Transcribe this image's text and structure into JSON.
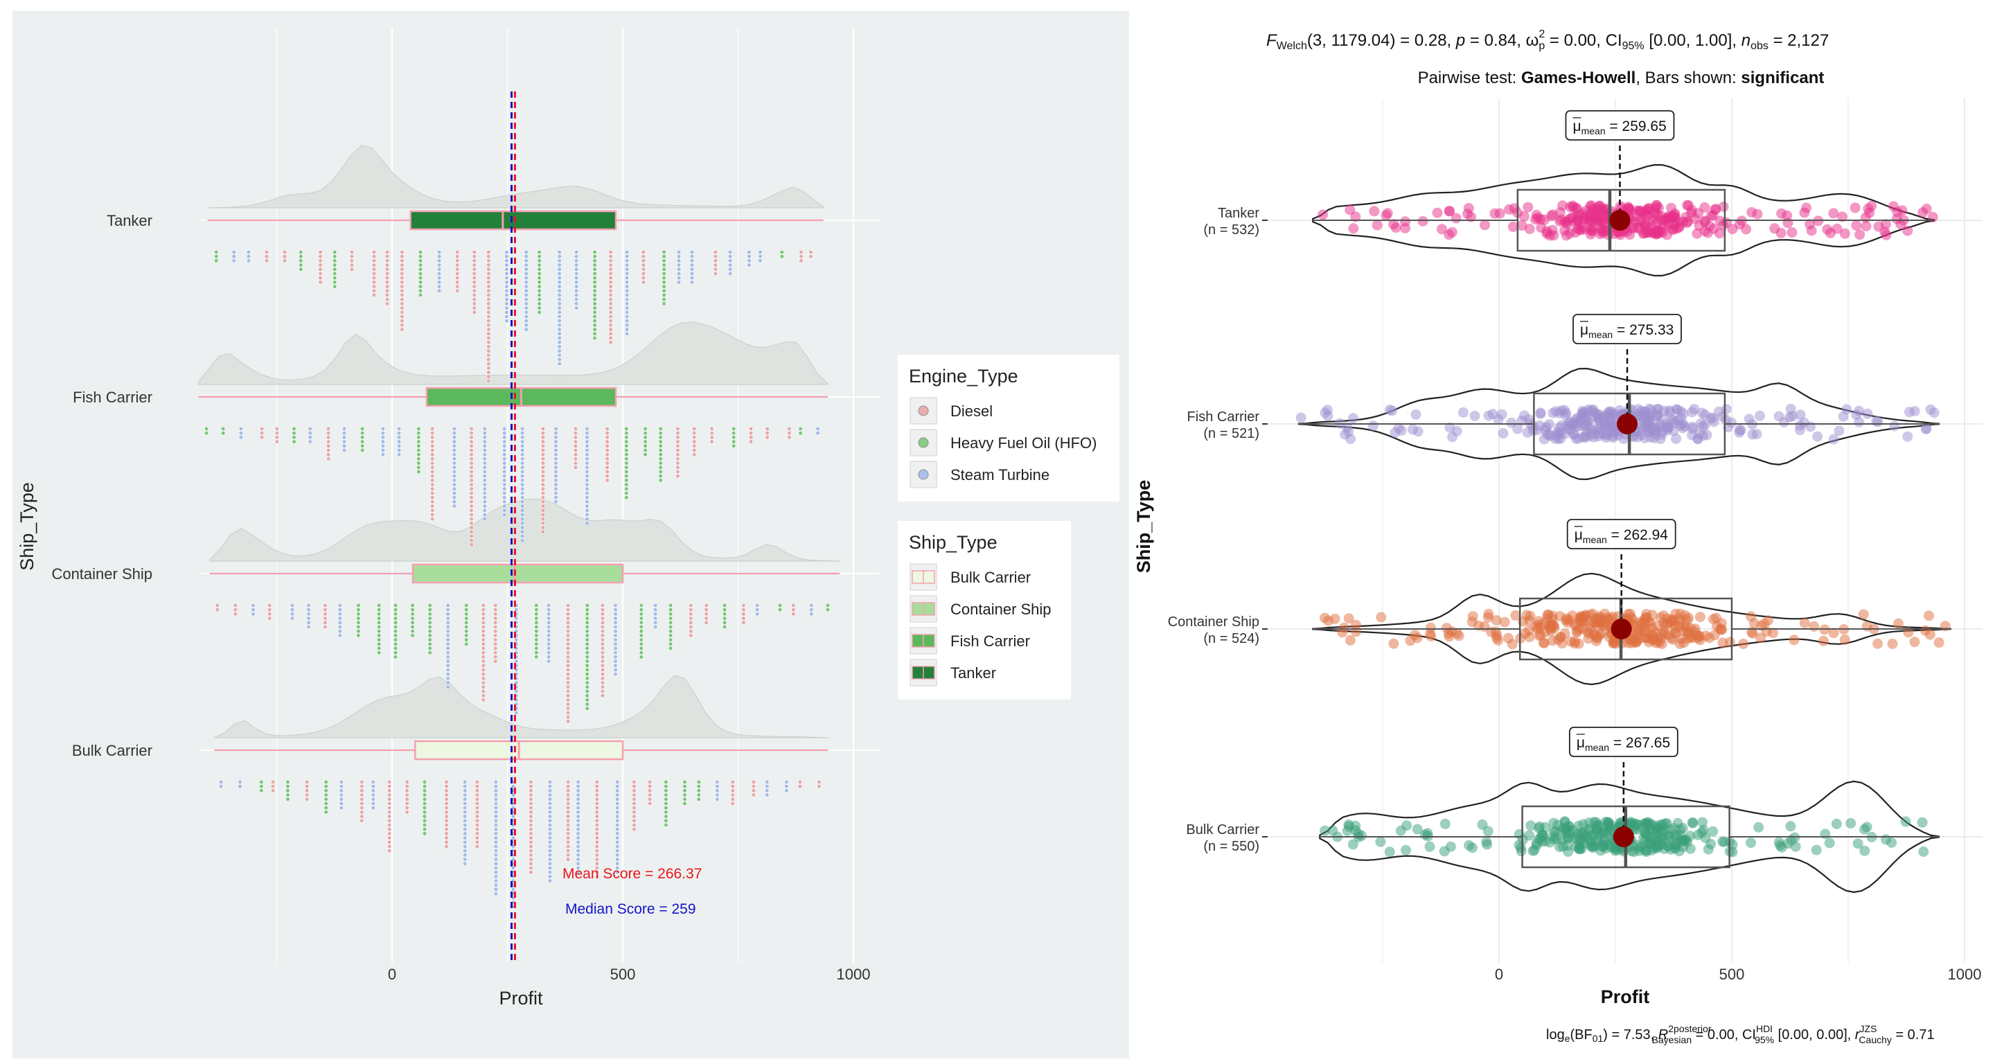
{
  "chart_data": [
    {
      "type": "raincloud",
      "xlabel": "Profit",
      "ylabel": "Ship_Type",
      "xlim": [
        -420,
        1050
      ],
      "x_ticks": [
        0,
        500,
        1000
      ],
      "categories": [
        "Bulk Carrier",
        "Container Ship",
        "Fish Carrier",
        "Tanker"
      ],
      "boxes": [
        {
          "name": "Bulk Carrier",
          "q1": 50,
          "median": 275,
          "q3": 500,
          "min": -385,
          "max": 945,
          "fill": "#edf7e2"
        },
        {
          "name": "Container Ship",
          "q1": 45,
          "median": 265,
          "q3": 500,
          "min": -395,
          "max": 970,
          "fill": "#a9dd9c"
        },
        {
          "name": "Fish Carrier",
          "q1": 75,
          "median": 280,
          "q3": 485,
          "min": -420,
          "max": 945,
          "fill": "#5cb85c"
        },
        {
          "name": "Tanker",
          "q1": 40,
          "median": 240,
          "q3": 485,
          "min": -400,
          "max": 935,
          "fill": "#23803a"
        }
      ],
      "mean_line": 266.37,
      "median_line": 259,
      "annotations": [
        "Mean Score =  266.37",
        "Median Score =  259"
      ],
      "legends": [
        {
          "title": "Engine_Type",
          "items": [
            {
              "label": "Diesel",
              "color": "#e8a0a0"
            },
            {
              "label": "Heavy Fuel Oil (HFO)",
              "color": "#6cc36c"
            },
            {
              "label": "Steam Turbine",
              "color": "#9bb6e8"
            }
          ]
        },
        {
          "title": "Ship_Type",
          "items": [
            {
              "label": "Bulk Carrier",
              "color": "#edf7e2"
            },
            {
              "label": "Container Ship",
              "color": "#a9dd9c"
            },
            {
              "label": "Fish Carrier",
              "color": "#5cb85c"
            },
            {
              "label": "Tanker",
              "color": "#23803a"
            }
          ]
        }
      ],
      "colors": {
        "panel_bg": "#edf0f0",
        "mean": "#e8161b",
        "median": "#1414c8",
        "box_outline": "#f4a0b0",
        "density": "#dde2df"
      }
    },
    {
      "type": "violin-box-scatter",
      "title_parts": {
        "welch_f": "F",
        "welch_sub": "Welch",
        "welch_args": "(3, 1179.04) = 0.28, ",
        "p": "p",
        "p_val": " = 0.84, ",
        "omega": "ω",
        "omega_sub": "p",
        "omega_sup": "2",
        "omega_hat": "^",
        "omega_val": " = 0.00, CI",
        "ci_sub": "95%",
        "ci_val": " [0.00, 1.00], ",
        "n": "n",
        "n_sub": "obs",
        "n_val": " = 2,127"
      },
      "subtitle": {
        "lead": "Pairwise test: ",
        "test": "Games-Howell",
        "mid": ", Bars shown: ",
        "shown": "significant"
      },
      "xlabel": "Profit",
      "ylabel": "Ship_Type",
      "xlim": [
        -440,
        1050
      ],
      "x_ticks": [
        0,
        500,
        1000
      ],
      "groups": [
        {
          "name": "Tanker",
          "n": "(n = 532)",
          "mean": 259.65,
          "mean_label": "259.65",
          "q1": 40,
          "median": 238,
          "q3": 485,
          "min": -400,
          "max": 935,
          "color": "#e8308a"
        },
        {
          "name": "Fish Carrier",
          "n": "(n = 521)",
          "mean": 275.33,
          "mean_label": "275.33",
          "q1": 75,
          "median": 280,
          "q3": 485,
          "min": -430,
          "max": 945,
          "color": "#9e8fd0"
        },
        {
          "name": "Container Ship",
          "n": "(n = 524)",
          "mean": 262.94,
          "mean_label": "262.94",
          "q1": 45,
          "median": 262,
          "q3": 500,
          "min": -400,
          "max": 970,
          "color": "#e07040"
        },
        {
          "name": "Bulk Carrier",
          "n": "(n = 550)",
          "mean": 267.65,
          "mean_label": "267.65",
          "q1": 50,
          "median": 272,
          "q3": 495,
          "min": -385,
          "max": 945,
          "color": "#3aa079"
        }
      ],
      "mean_label_prefix": "μ",
      "mean_label_sub": "mean",
      "mean_label_eq": " = ",
      "caption": {
        "a": "log",
        "a_sub": "e",
        "b": "(BF",
        "b_sub": "01",
        "c": ") = 7.53, ",
        "r2": "R",
        "r2_sup": "2",
        "r2_sup2": "posterior",
        "r2_sub": "Bayesian",
        "d": " = 0.00, CI",
        "ci_sup": "HDI",
        "ci_sub": "95%",
        "e": " [0.00, 0.00], ",
        "r": "r",
        "r_sup": "JZS",
        "r_sub": "Cauchy",
        "f": " = 0.71"
      },
      "colors": {
        "mean_point": "#8b0000"
      }
    }
  ]
}
